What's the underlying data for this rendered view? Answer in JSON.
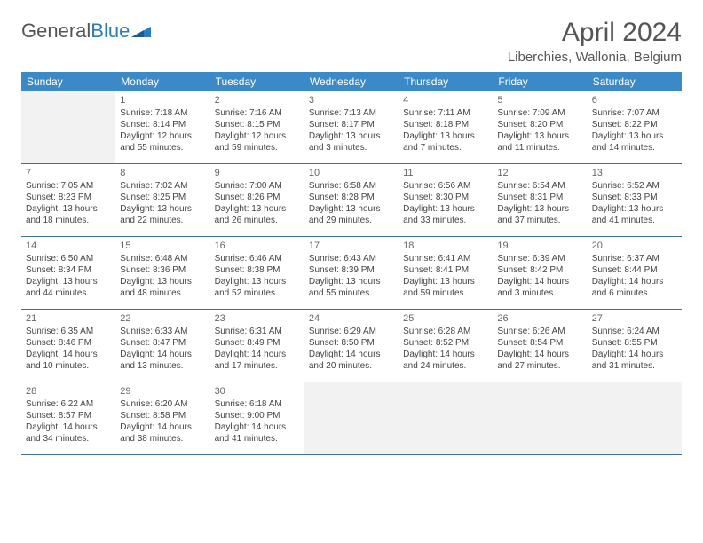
{
  "header": {
    "logo_text_a": "General",
    "logo_text_b": "Blue",
    "month_title": "April 2024",
    "location": "Liberchies, Wallonia, Belgium"
  },
  "colors": {
    "header_bg": "#3b89c7",
    "header_text": "#ffffff",
    "row_border": "#3b6fa0",
    "empty_cell_bg": "#f2f2f2",
    "text": "#444444",
    "logo_blue": "#2b7bbf"
  },
  "day_names": [
    "Sunday",
    "Monday",
    "Tuesday",
    "Wednesday",
    "Thursday",
    "Friday",
    "Saturday"
  ],
  "weeks": [
    [
      {
        "empty": true
      },
      {
        "day": "1",
        "sunrise": "Sunrise: 7:18 AM",
        "sunset": "Sunset: 8:14 PM",
        "daylight": "Daylight: 12 hours and 55 minutes."
      },
      {
        "day": "2",
        "sunrise": "Sunrise: 7:16 AM",
        "sunset": "Sunset: 8:15 PM",
        "daylight": "Daylight: 12 hours and 59 minutes."
      },
      {
        "day": "3",
        "sunrise": "Sunrise: 7:13 AM",
        "sunset": "Sunset: 8:17 PM",
        "daylight": "Daylight: 13 hours and 3 minutes."
      },
      {
        "day": "4",
        "sunrise": "Sunrise: 7:11 AM",
        "sunset": "Sunset: 8:18 PM",
        "daylight": "Daylight: 13 hours and 7 minutes."
      },
      {
        "day": "5",
        "sunrise": "Sunrise: 7:09 AM",
        "sunset": "Sunset: 8:20 PM",
        "daylight": "Daylight: 13 hours and 11 minutes."
      },
      {
        "day": "6",
        "sunrise": "Sunrise: 7:07 AM",
        "sunset": "Sunset: 8:22 PM",
        "daylight": "Daylight: 13 hours and 14 minutes."
      }
    ],
    [
      {
        "day": "7",
        "sunrise": "Sunrise: 7:05 AM",
        "sunset": "Sunset: 8:23 PM",
        "daylight": "Daylight: 13 hours and 18 minutes."
      },
      {
        "day": "8",
        "sunrise": "Sunrise: 7:02 AM",
        "sunset": "Sunset: 8:25 PM",
        "daylight": "Daylight: 13 hours and 22 minutes."
      },
      {
        "day": "9",
        "sunrise": "Sunrise: 7:00 AM",
        "sunset": "Sunset: 8:26 PM",
        "daylight": "Daylight: 13 hours and 26 minutes."
      },
      {
        "day": "10",
        "sunrise": "Sunrise: 6:58 AM",
        "sunset": "Sunset: 8:28 PM",
        "daylight": "Daylight: 13 hours and 29 minutes."
      },
      {
        "day": "11",
        "sunrise": "Sunrise: 6:56 AM",
        "sunset": "Sunset: 8:30 PM",
        "daylight": "Daylight: 13 hours and 33 minutes."
      },
      {
        "day": "12",
        "sunrise": "Sunrise: 6:54 AM",
        "sunset": "Sunset: 8:31 PM",
        "daylight": "Daylight: 13 hours and 37 minutes."
      },
      {
        "day": "13",
        "sunrise": "Sunrise: 6:52 AM",
        "sunset": "Sunset: 8:33 PM",
        "daylight": "Daylight: 13 hours and 41 minutes."
      }
    ],
    [
      {
        "day": "14",
        "sunrise": "Sunrise: 6:50 AM",
        "sunset": "Sunset: 8:34 PM",
        "daylight": "Daylight: 13 hours and 44 minutes."
      },
      {
        "day": "15",
        "sunrise": "Sunrise: 6:48 AM",
        "sunset": "Sunset: 8:36 PM",
        "daylight": "Daylight: 13 hours and 48 minutes."
      },
      {
        "day": "16",
        "sunrise": "Sunrise: 6:46 AM",
        "sunset": "Sunset: 8:38 PM",
        "daylight": "Daylight: 13 hours and 52 minutes."
      },
      {
        "day": "17",
        "sunrise": "Sunrise: 6:43 AM",
        "sunset": "Sunset: 8:39 PM",
        "daylight": "Daylight: 13 hours and 55 minutes."
      },
      {
        "day": "18",
        "sunrise": "Sunrise: 6:41 AM",
        "sunset": "Sunset: 8:41 PM",
        "daylight": "Daylight: 13 hours and 59 minutes."
      },
      {
        "day": "19",
        "sunrise": "Sunrise: 6:39 AM",
        "sunset": "Sunset: 8:42 PM",
        "daylight": "Daylight: 14 hours and 3 minutes."
      },
      {
        "day": "20",
        "sunrise": "Sunrise: 6:37 AM",
        "sunset": "Sunset: 8:44 PM",
        "daylight": "Daylight: 14 hours and 6 minutes."
      }
    ],
    [
      {
        "day": "21",
        "sunrise": "Sunrise: 6:35 AM",
        "sunset": "Sunset: 8:46 PM",
        "daylight": "Daylight: 14 hours and 10 minutes."
      },
      {
        "day": "22",
        "sunrise": "Sunrise: 6:33 AM",
        "sunset": "Sunset: 8:47 PM",
        "daylight": "Daylight: 14 hours and 13 minutes."
      },
      {
        "day": "23",
        "sunrise": "Sunrise: 6:31 AM",
        "sunset": "Sunset: 8:49 PM",
        "daylight": "Daylight: 14 hours and 17 minutes."
      },
      {
        "day": "24",
        "sunrise": "Sunrise: 6:29 AM",
        "sunset": "Sunset: 8:50 PM",
        "daylight": "Daylight: 14 hours and 20 minutes."
      },
      {
        "day": "25",
        "sunrise": "Sunrise: 6:28 AM",
        "sunset": "Sunset: 8:52 PM",
        "daylight": "Daylight: 14 hours and 24 minutes."
      },
      {
        "day": "26",
        "sunrise": "Sunrise: 6:26 AM",
        "sunset": "Sunset: 8:54 PM",
        "daylight": "Daylight: 14 hours and 27 minutes."
      },
      {
        "day": "27",
        "sunrise": "Sunrise: 6:24 AM",
        "sunset": "Sunset: 8:55 PM",
        "daylight": "Daylight: 14 hours and 31 minutes."
      }
    ],
    [
      {
        "day": "28",
        "sunrise": "Sunrise: 6:22 AM",
        "sunset": "Sunset: 8:57 PM",
        "daylight": "Daylight: 14 hours and 34 minutes."
      },
      {
        "day": "29",
        "sunrise": "Sunrise: 6:20 AM",
        "sunset": "Sunset: 8:58 PM",
        "daylight": "Daylight: 14 hours and 38 minutes."
      },
      {
        "day": "30",
        "sunrise": "Sunrise: 6:18 AM",
        "sunset": "Sunset: 9:00 PM",
        "daylight": "Daylight: 14 hours and 41 minutes."
      },
      {
        "empty": true
      },
      {
        "empty": true
      },
      {
        "empty": true
      },
      {
        "empty": true
      }
    ]
  ]
}
